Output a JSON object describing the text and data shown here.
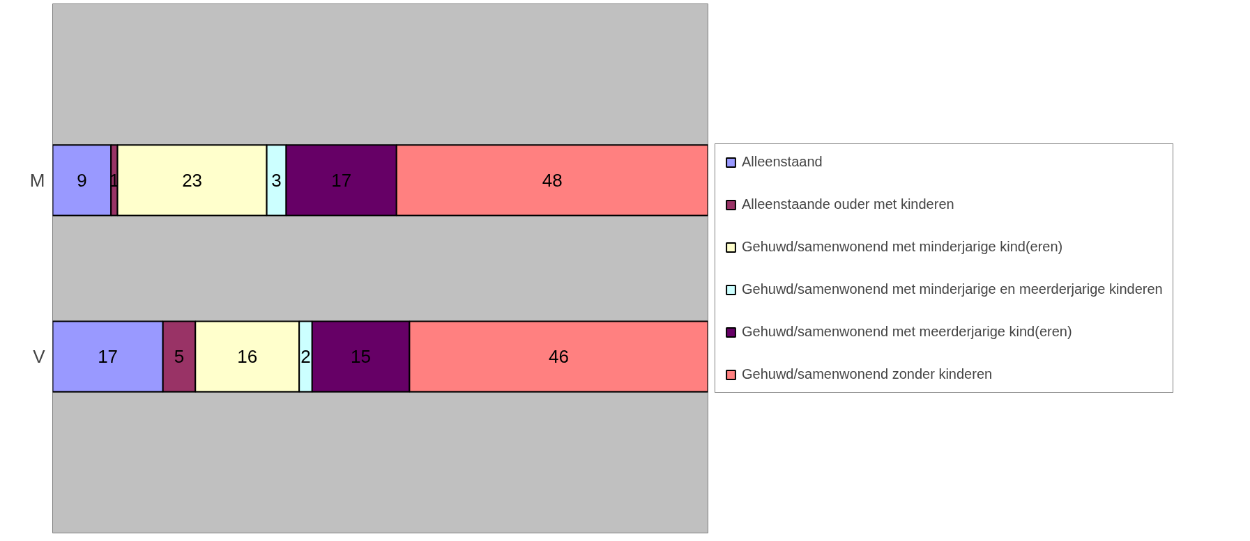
{
  "chart_data": {
    "type": "bar",
    "orientation": "horizontal",
    "stacked": true,
    "categories": [
      "M",
      "V"
    ],
    "series": [
      {
        "name": "Alleenstaand",
        "color": "#9999ff",
        "values": [
          9,
          17
        ]
      },
      {
        "name": "Alleenstaande ouder met kinderen",
        "color": "#993366",
        "values": [
          1,
          5
        ]
      },
      {
        "name": "Gehuwd/samenwonend met minderjarige kind(eren)",
        "color": "#ffffcc",
        "values": [
          23,
          16
        ]
      },
      {
        "name": "Gehuwd/samenwonend met minderjarige en meerderjarige kinderen",
        "color": "#ccffff",
        "values": [
          3,
          2
        ]
      },
      {
        "name": "Gehuwd/samenwonend met meerderjarige kind(eren)",
        "color": "#660066",
        "values": [
          17,
          15
        ]
      },
      {
        "name": "Gehuwd/samenwonend zonder kinderen",
        "color": "#ff8080",
        "values": [
          48,
          46
        ]
      }
    ],
    "data_labels": true,
    "legend": "right",
    "grid": false
  }
}
